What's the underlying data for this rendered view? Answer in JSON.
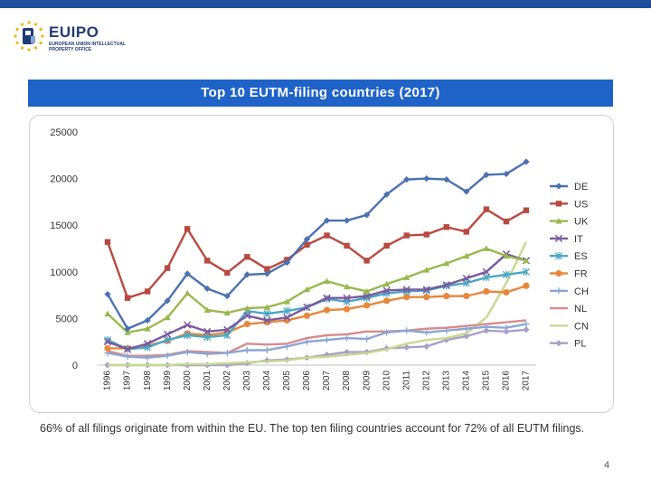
{
  "header": {
    "logo_name": "EUIPO",
    "logo_subtitle": "EUROPEAN UNION INTELLECTUAL PROPERTY OFFICE"
  },
  "slide": {
    "caption": "66% of all filings originate from within the EU. The top ten filing countries account for 72% of all EUTM filings.",
    "page_number": "4"
  },
  "colors": {
    "topbar": "#1f4e9c",
    "banner": "#1f62c8"
  },
  "chart_data": {
    "type": "line",
    "title": "Top 10 EUTM-filing countries (2017)",
    "ylim": [
      0,
      25000
    ],
    "yticks": [
      0,
      5000,
      10000,
      15000,
      20000,
      25000
    ],
    "grid": false,
    "legend_position": "right",
    "categories": [
      "1996",
      "1997",
      "1998",
      "1999",
      "2000",
      "2001",
      "2002",
      "2003",
      "2004",
      "2005",
      "2006",
      "2007",
      "2008",
      "2009",
      "2010",
      "2011",
      "2012",
      "2013",
      "2014",
      "2015",
      "2016",
      "2017"
    ],
    "series": [
      {
        "name": "DE",
        "color": "#4a72b0",
        "marker": "diamond",
        "values": [
          7600,
          3900,
          4800,
          6900,
          9800,
          8200,
          7400,
          9700,
          9800,
          11000,
          13500,
          15500,
          15500,
          16100,
          18300,
          19900,
          20000,
          19900,
          18600,
          20400,
          20500,
          21800
        ]
      },
      {
        "name": "US",
        "color": "#b84a40",
        "marker": "square",
        "values": [
          13200,
          7200,
          7900,
          10400,
          14600,
          11200,
          9900,
          11600,
          10300,
          11300,
          12900,
          13900,
          12800,
          11200,
          12800,
          13900,
          14000,
          14800,
          14300,
          16700,
          15400,
          16600
        ]
      },
      {
        "name": "UK",
        "color": "#98b94d",
        "marker": "triangle",
        "values": [
          5500,
          3500,
          3900,
          5100,
          7700,
          5900,
          5600,
          6100,
          6200,
          6800,
          8100,
          9000,
          8400,
          7900,
          8700,
          9400,
          10200,
          10900,
          11700,
          12500,
          11700,
          11200
        ]
      },
      {
        "name": "IT",
        "color": "#7a5a9e",
        "marker": "x",
        "values": [
          2500,
          1700,
          2300,
          3300,
          4300,
          3600,
          3800,
          5300,
          4800,
          5100,
          6200,
          7200,
          7200,
          7400,
          8000,
          8100,
          8100,
          8600,
          9300,
          10000,
          11900,
          11200
        ]
      },
      {
        "name": "ES",
        "color": "#4aa8c4",
        "marker": "asterisk",
        "values": [
          2700,
          1700,
          1900,
          2700,
          3200,
          3000,
          3200,
          5800,
          5500,
          5800,
          6200,
          7100,
          6800,
          7200,
          7700,
          7900,
          8000,
          8500,
          8800,
          9400,
          9700,
          10000
        ]
      },
      {
        "name": "FR",
        "color": "#e8873a",
        "marker": "circle",
        "values": [
          1800,
          1800,
          2100,
          2600,
          3400,
          3200,
          3500,
          4400,
          4600,
          4800,
          5300,
          5900,
          6000,
          6400,
          6900,
          7300,
          7300,
          7400,
          7400,
          7900,
          7800,
          8500
        ]
      },
      {
        "name": "CH",
        "color": "#8aa6d4",
        "marker": "plus",
        "values": [
          1300,
          900,
          800,
          1000,
          1400,
          1200,
          1300,
          1600,
          1600,
          2000,
          2500,
          2700,
          2900,
          2800,
          3500,
          3700,
          3500,
          3700,
          3900,
          4100,
          4000,
          4400
        ]
      },
      {
        "name": "NL",
        "color": "#d98a8a",
        "marker": "none",
        "values": [
          1500,
          1000,
          1000,
          1100,
          1500,
          1400,
          1300,
          2300,
          2200,
          2300,
          2900,
          3200,
          3300,
          3600,
          3600,
          3700,
          3900,
          4000,
          4200,
          4400,
          4600,
          4800
        ]
      },
      {
        "name": "CN",
        "color": "#c6d98f",
        "marker": "none",
        "values": [
          0,
          0,
          0,
          0,
          100,
          100,
          200,
          300,
          400,
          500,
          800,
          900,
          1100,
          1300,
          1700,
          2300,
          2700,
          2900,
          3400,
          5100,
          8800,
          13200
        ]
      },
      {
        "name": "PL",
        "color": "#a8a0c8",
        "marker": "diamond",
        "values": [
          0,
          0,
          0,
          0,
          0,
          0,
          0,
          200,
          500,
          600,
          800,
          1100,
          1400,
          1400,
          1800,
          1900,
          2000,
          2700,
          3100,
          3700,
          3600,
          3800
        ]
      }
    ]
  }
}
